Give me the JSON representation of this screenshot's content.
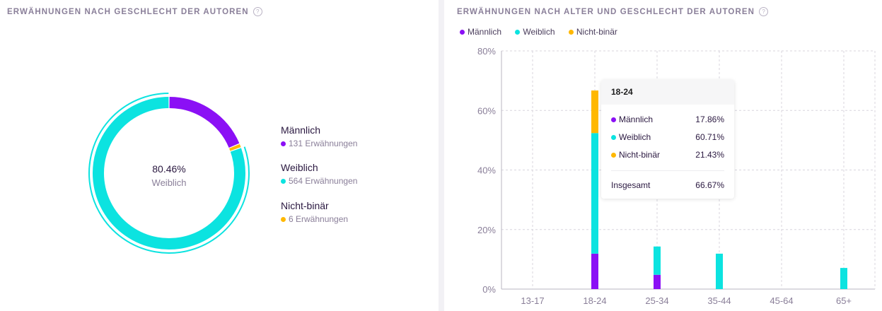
{
  "left": {
    "title": "ERWÄHNUNGEN NACH GESCHLECHT DER AUTOREN",
    "help_icon": "question-circle-icon",
    "center_value": "80.46%",
    "center_label": "Weiblich",
    "legend": [
      {
        "name": "Männlich",
        "count": "131 Erwähnungen",
        "color": "#8b10f5"
      },
      {
        "name": "Weiblich",
        "count": "564 Erwähnungen",
        "color": "#0ce3e0"
      },
      {
        "name": "Nicht-binär",
        "count": "6 Erwähnungen",
        "color": "#ffb800"
      }
    ]
  },
  "right": {
    "title": "ERWÄHNUNGEN NACH ALTER UND GESCHLECHT DER AUTOREN",
    "help_icon": "question-circle-icon",
    "legend": [
      {
        "name": "Männlich",
        "color": "#8b10f5"
      },
      {
        "name": "Weiblich",
        "color": "#0ce3e0"
      },
      {
        "name": "Nicht-binär",
        "color": "#ffb800"
      }
    ],
    "tooltip": {
      "title": "18-24",
      "rows": [
        {
          "name": "Männlich",
          "value": "17.86%",
          "color": "#8b10f5"
        },
        {
          "name": "Weiblich",
          "value": "60.71%",
          "color": "#0ce3e0"
        },
        {
          "name": "Nicht-binär",
          "value": "21.43%",
          "color": "#ffb800"
        }
      ],
      "total_label": "Insgesamt",
      "total_value": "66.67%"
    }
  },
  "chart_data": [
    {
      "type": "pie",
      "labels": [
        "Männlich",
        "Weiblich",
        "Nicht-binär"
      ],
      "values": [
        131,
        564,
        6
      ],
      "colors": [
        "#8b10f5",
        "#0ce3e0",
        "#ffb800"
      ],
      "highlighted": "Weiblich",
      "title": "ERWÄHNUNGEN NACH GESCHLECHT DER AUTOREN"
    },
    {
      "type": "bar",
      "stacked": true,
      "title": "ERWÄHNUNGEN NACH ALTER UND GESCHLECHT DER AUTOREN",
      "categories": [
        "13-17",
        "18-24",
        "25-34",
        "35-44",
        "45-64",
        "65+"
      ],
      "series": [
        {
          "name": "Männlich",
          "color": "#8b10f5",
          "values": [
            0,
            11.9,
            4.8,
            0,
            0,
            0
          ]
        },
        {
          "name": "Weiblich",
          "color": "#0ce3e0",
          "values": [
            0,
            40.5,
            9.5,
            11.9,
            0,
            7.1
          ]
        },
        {
          "name": "Nicht-binär",
          "color": "#ffb800",
          "values": [
            0,
            14.3,
            0,
            0,
            0,
            0
          ]
        }
      ],
      "ylim": [
        0,
        80
      ],
      "yticks": [
        "0%",
        "20%",
        "40%",
        "60%",
        "80%"
      ],
      "grid": true,
      "legend_position": "top-left"
    }
  ]
}
